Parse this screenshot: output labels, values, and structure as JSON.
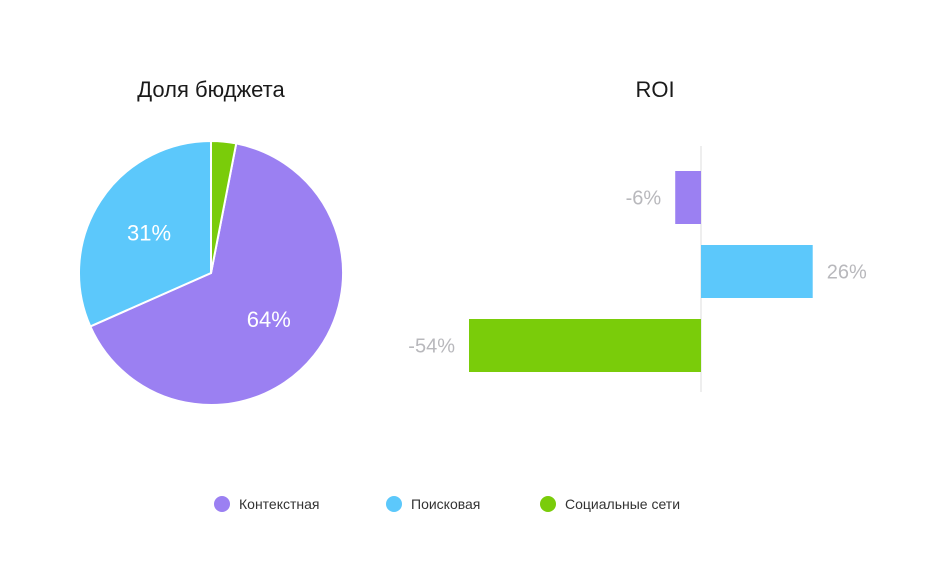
{
  "chart_data": [
    {
      "type": "pie",
      "title": "Доля бюджета",
      "slices": [
        {
          "name": "Контекстная",
          "value": 64,
          "label": "64%"
        },
        {
          "name": "Поисковая",
          "value": 31,
          "label": "31%"
        },
        {
          "name": "Социальные сети",
          "value": 3,
          "label": ""
        }
      ]
    },
    {
      "type": "bar",
      "orientation": "horizontal",
      "title": "ROI",
      "categories": [
        "Контекстная",
        "Поисковая",
        "Социальные сети"
      ],
      "values": [
        -6,
        26,
        -54
      ],
      "value_labels": [
        "-6%",
        "26%",
        "-54%"
      ],
      "xlim": [
        -54,
        26
      ]
    }
  ],
  "legend": [
    {
      "label": "Контекстная",
      "color": "#9b80f2"
    },
    {
      "label": "Поисковая",
      "color": "#5cc8fb"
    },
    {
      "label": "Социальные сети",
      "color": "#7acc0a"
    }
  ]
}
